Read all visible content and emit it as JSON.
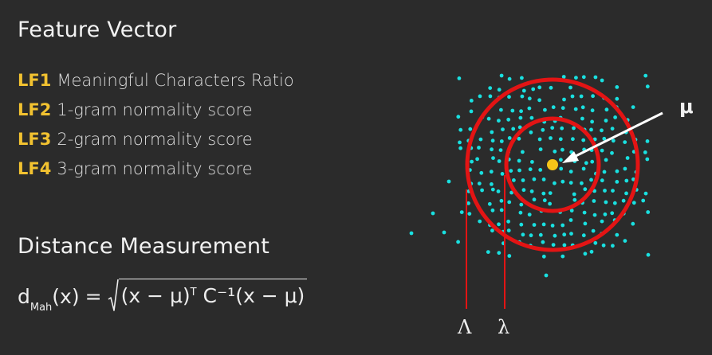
{
  "feature_vector": {
    "heading": "Feature Vector",
    "items": [
      {
        "code": "LF1",
        "label": "Meaningful Characters Ratio"
      },
      {
        "code": "LF2",
        "label": "1-gram normality score"
      },
      {
        "code": "LF3",
        "label": "2-gram normality score"
      },
      {
        "code": "LF4",
        "label": "3-gram normality score"
      }
    ]
  },
  "distance_measurement": {
    "heading": "Distance Measurement",
    "formula": {
      "lhs": "d",
      "lhs_subscript": "Mah",
      "argument": "(x)",
      "equals": "=",
      "radicand_left": "(x − μ)",
      "transpose": "T",
      "radicand_right": " C⁻¹(x − μ)"
    }
  },
  "diagram": {
    "mean_label": "μ",
    "outer_threshold_label": "Λ",
    "inner_threshold_label": "λ",
    "colors": {
      "points": "#19e0e0",
      "circles": "#e31414",
      "mean": "#f5c518",
      "arrow": "#ffffff",
      "background": "#2b2b2b"
    }
  }
}
